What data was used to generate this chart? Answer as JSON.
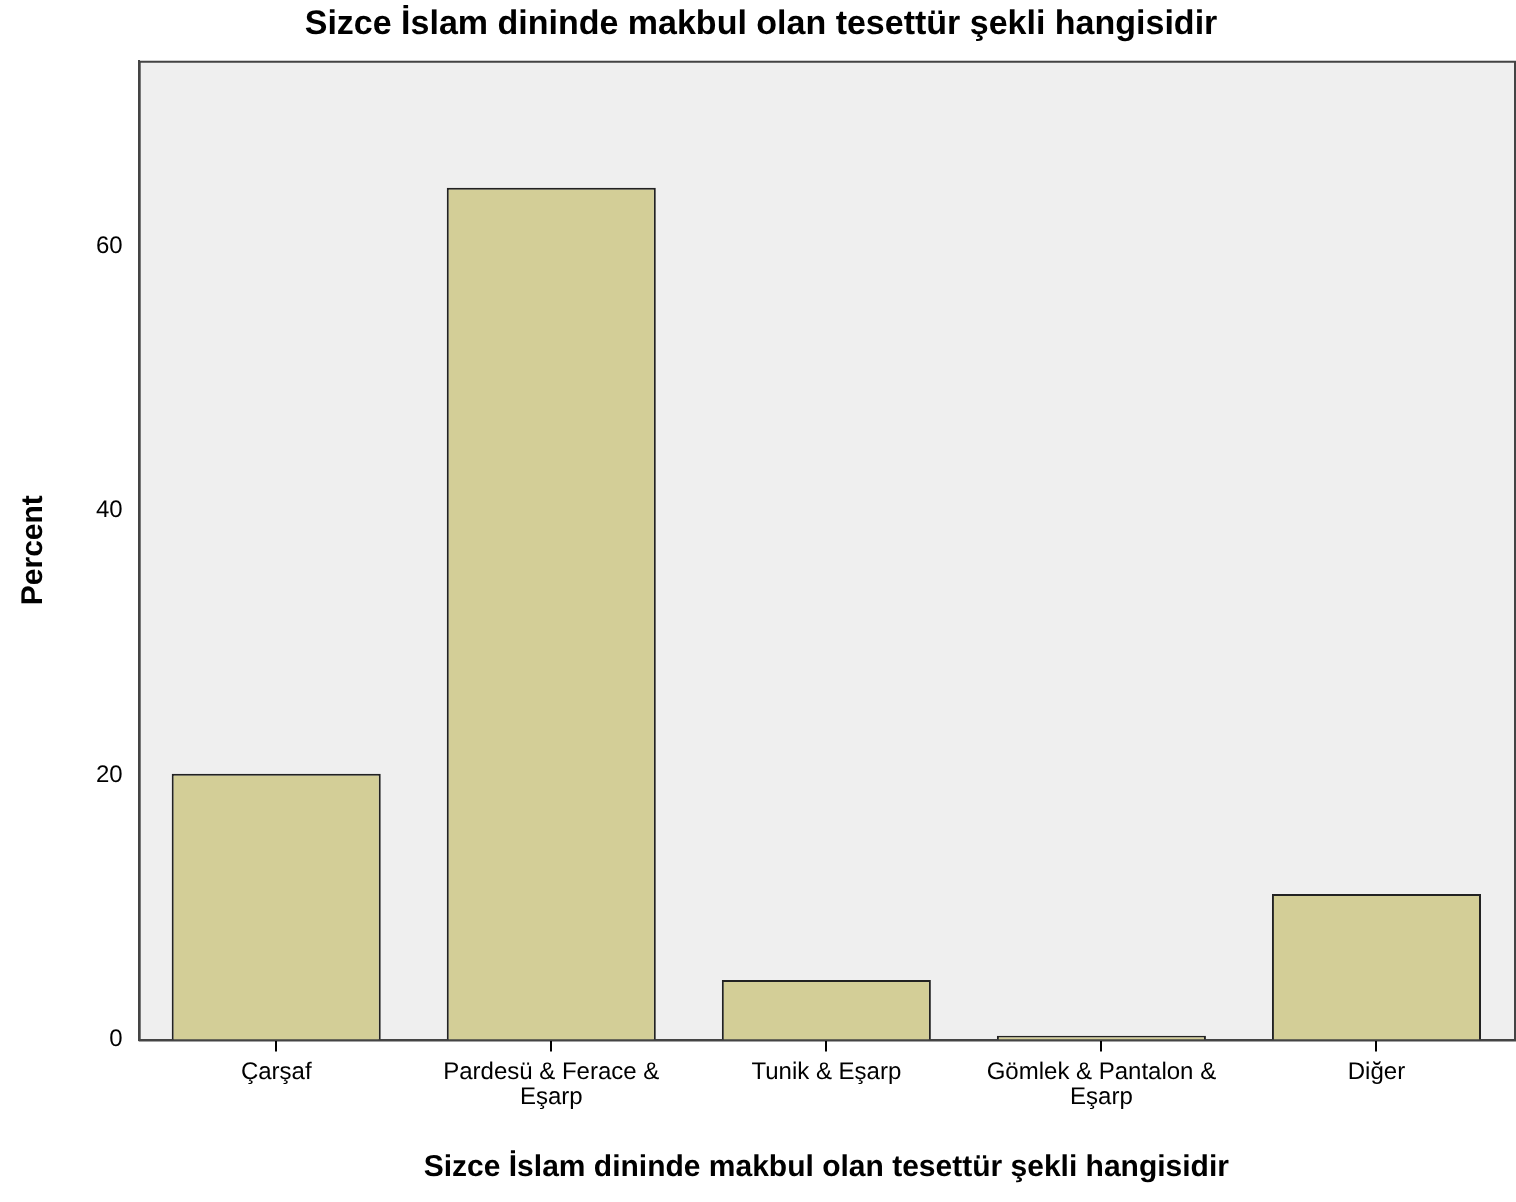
{
  "chart_data": {
    "type": "bar",
    "title": "Sizce İslam dininde makbul olan tesettür şekli hangisidir",
    "xlabel": "Sizce İslam dininde makbul olan tesettür şekli hangisidir",
    "ylabel": "Percent",
    "categories": [
      "Çarşaf",
      "Pardesü & Ferace & Eşarp",
      "Tunik & Eşarp",
      "Gömlek & Pantalon & Eşarp",
      "Diğer"
    ],
    "values": [
      20.1,
      64.4,
      4.5,
      0.3,
      11.0
    ],
    "color": "#d3ce97",
    "ylim": [
      0,
      74
    ],
    "yticks": [
      0,
      20,
      40,
      60
    ],
    "grid": false,
    "legend": false
  }
}
